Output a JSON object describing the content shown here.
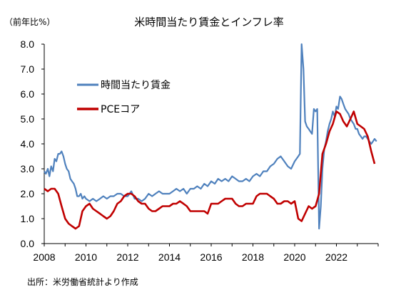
{
  "chart_data": {
    "type": "line",
    "title": "米時間当たり賃金とインフレ率",
    "unit_label": "（前年比%）",
    "source": "出所：米労働省統計より作成",
    "xlim": [
      2008,
      2024
    ],
    "ylim": [
      0.0,
      8.0
    ],
    "x_ticks": [
      "2008",
      "2010",
      "2012",
      "2014",
      "2016",
      "2018",
      "2020",
      "2022"
    ],
    "y_ticks": [
      "0.0",
      "1.0",
      "2.0",
      "3.0",
      "4.0",
      "5.0",
      "6.0",
      "7.0",
      "8.0"
    ],
    "legend_position": "upper-left",
    "grid": false,
    "series": [
      {
        "name": "時間当たり賃金",
        "color": "#4f81bd",
        "x": [
          2008.0,
          2008.08,
          2008.17,
          2008.25,
          2008.33,
          2008.42,
          2008.5,
          2008.58,
          2008.67,
          2008.75,
          2008.83,
          2008.92,
          2009.0,
          2009.08,
          2009.17,
          2009.25,
          2009.33,
          2009.42,
          2009.5,
          2009.58,
          2009.67,
          2009.75,
          2009.83,
          2009.92,
          2010.0,
          2010.17,
          2010.33,
          2010.5,
          2010.67,
          2010.83,
          2011.0,
          2011.17,
          2011.33,
          2011.5,
          2011.67,
          2011.83,
          2012.0,
          2012.17,
          2012.33,
          2012.5,
          2012.67,
          2012.83,
          2013.0,
          2013.17,
          2013.33,
          2013.5,
          2013.67,
          2013.83,
          2014.0,
          2014.17,
          2014.33,
          2014.5,
          2014.67,
          2014.83,
          2015.0,
          2015.17,
          2015.33,
          2015.5,
          2015.67,
          2015.83,
          2016.0,
          2016.17,
          2016.33,
          2016.5,
          2016.67,
          2016.83,
          2017.0,
          2017.17,
          2017.33,
          2017.5,
          2017.67,
          2017.83,
          2018.0,
          2018.17,
          2018.33,
          2018.5,
          2018.67,
          2018.83,
          2019.0,
          2019.17,
          2019.33,
          2019.5,
          2019.67,
          2019.83,
          2020.0,
          2020.17,
          2020.25,
          2020.33,
          2020.42,
          2020.5,
          2020.58,
          2020.67,
          2020.75,
          2020.83,
          2020.92,
          2021.0,
          2021.08,
          2021.17,
          2021.25,
          2021.33,
          2021.42,
          2021.5,
          2021.58,
          2021.67,
          2021.75,
          2021.83,
          2021.92,
          2022.0,
          2022.08,
          2022.17,
          2022.25,
          2022.33,
          2022.42,
          2022.5,
          2022.58,
          2022.67,
          2022.75,
          2022.83,
          2022.92,
          2023.0,
          2023.08,
          2023.17,
          2023.25,
          2023.33,
          2023.42,
          2023.5,
          2023.58,
          2023.67,
          2023.75,
          2023.83,
          2023.92
        ],
        "y": [
          2.9,
          2.8,
          3.0,
          2.7,
          3.1,
          2.9,
          3.4,
          3.3,
          3.6,
          3.6,
          3.7,
          3.5,
          3.2,
          3.0,
          2.9,
          2.6,
          2.5,
          2.4,
          2.2,
          1.9,
          1.9,
          2.0,
          1.8,
          1.9,
          1.8,
          1.7,
          1.8,
          1.7,
          1.8,
          1.9,
          1.8,
          1.9,
          1.9,
          2.0,
          2.0,
          1.9,
          1.9,
          2.1,
          1.8,
          1.8,
          1.7,
          1.8,
          2.0,
          1.9,
          2.0,
          2.1,
          2.0,
          2.0,
          2.0,
          2.1,
          2.2,
          2.1,
          2.2,
          2.0,
          2.2,
          2.2,
          2.3,
          2.2,
          2.4,
          2.3,
          2.5,
          2.4,
          2.6,
          2.5,
          2.6,
          2.5,
          2.7,
          2.6,
          2.5,
          2.5,
          2.6,
          2.5,
          2.7,
          2.8,
          2.7,
          2.9,
          2.9,
          3.1,
          3.2,
          3.4,
          3.5,
          3.3,
          3.1,
          3.0,
          3.3,
          3.5,
          3.6,
          8.0,
          7.0,
          4.9,
          4.7,
          4.6,
          4.5,
          4.4,
          5.4,
          5.3,
          5.4,
          0.6,
          1.5,
          3.0,
          3.8,
          4.1,
          4.5,
          4.8,
          5.0,
          5.3,
          5.1,
          5.5,
          5.4,
          5.9,
          5.8,
          5.6,
          5.4,
          5.3,
          5.2,
          5.0,
          4.9,
          4.8,
          4.6,
          4.6,
          4.4,
          4.3,
          4.2,
          4.3,
          4.3,
          4.2,
          4.1,
          4.0,
          4.1,
          4.2,
          4.1
        ]
      },
      {
        "name": "PCEコア",
        "color": "#c00000",
        "x": [
          2008.0,
          2008.17,
          2008.33,
          2008.5,
          2008.67,
          2008.83,
          2009.0,
          2009.17,
          2009.33,
          2009.5,
          2009.67,
          2009.83,
          2010.0,
          2010.17,
          2010.33,
          2010.5,
          2010.67,
          2010.83,
          2011.0,
          2011.17,
          2011.33,
          2011.5,
          2011.67,
          2011.83,
          2012.0,
          2012.17,
          2012.33,
          2012.5,
          2012.67,
          2012.83,
          2013.0,
          2013.17,
          2013.33,
          2013.5,
          2013.67,
          2013.83,
          2014.0,
          2014.17,
          2014.33,
          2014.5,
          2014.67,
          2014.83,
          2015.0,
          2015.17,
          2015.33,
          2015.5,
          2015.67,
          2015.83,
          2016.0,
          2016.17,
          2016.33,
          2016.5,
          2016.67,
          2016.83,
          2017.0,
          2017.17,
          2017.33,
          2017.5,
          2017.67,
          2017.83,
          2018.0,
          2018.17,
          2018.33,
          2018.5,
          2018.67,
          2018.83,
          2019.0,
          2019.17,
          2019.33,
          2019.5,
          2019.67,
          2019.83,
          2020.0,
          2020.17,
          2020.33,
          2020.5,
          2020.67,
          2020.83,
          2021.0,
          2021.17,
          2021.33,
          2021.5,
          2021.67,
          2021.83,
          2022.0,
          2022.17,
          2022.33,
          2022.5,
          2022.67,
          2022.83,
          2023.0,
          2023.17,
          2023.33,
          2023.5,
          2023.67,
          2023.83
        ],
        "y": [
          2.2,
          2.1,
          2.2,
          2.2,
          2.0,
          1.5,
          1.0,
          0.8,
          0.7,
          0.6,
          0.7,
          1.3,
          1.5,
          1.6,
          1.4,
          1.3,
          1.2,
          1.1,
          1.0,
          1.1,
          1.3,
          1.6,
          1.7,
          1.9,
          2.0,
          2.0,
          1.9,
          1.7,
          1.6,
          1.6,
          1.4,
          1.3,
          1.3,
          1.4,
          1.5,
          1.5,
          1.5,
          1.6,
          1.6,
          1.7,
          1.6,
          1.5,
          1.3,
          1.3,
          1.3,
          1.3,
          1.3,
          1.2,
          1.6,
          1.6,
          1.6,
          1.7,
          1.8,
          1.8,
          1.8,
          1.6,
          1.5,
          1.5,
          1.6,
          1.6,
          1.6,
          1.9,
          2.0,
          2.0,
          2.0,
          1.9,
          1.8,
          1.6,
          1.6,
          1.7,
          1.7,
          1.6,
          1.7,
          1.0,
          0.9,
          1.2,
          1.5,
          1.4,
          1.5,
          2.0,
          3.6,
          4.0,
          4.5,
          4.8,
          5.3,
          5.2,
          4.9,
          4.7,
          5.0,
          5.3,
          4.8,
          4.7,
          4.6,
          4.3,
          3.7,
          3.2
        ]
      }
    ]
  }
}
